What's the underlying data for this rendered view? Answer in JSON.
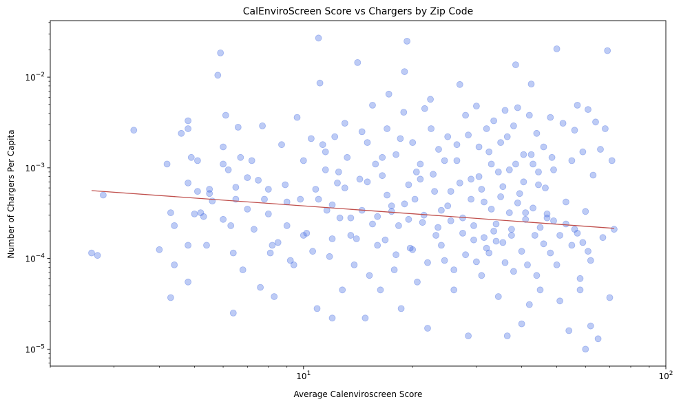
{
  "chart_data": {
    "type": "scatter",
    "title": "CalEnviroScreen Score vs Chargers by Zip Code",
    "xlabel": "Average Calenviroscreen Score",
    "ylabel": "Number of Chargers Per Capita",
    "x_scale": "log",
    "y_scale": "log",
    "xlim": [
      2,
      100
    ],
    "ylim": [
      6.5e-06,
      0.042
    ],
    "x_ticks": [
      {
        "value": 10,
        "label": "10",
        "exp": "1"
      },
      {
        "value": 100,
        "label": "10",
        "exp": "2"
      }
    ],
    "y_ticks": [
      {
        "value": 1e-05,
        "label": "10",
        "exp": "−5"
      },
      {
        "value": 0.0001,
        "label": "10",
        "exp": "−4"
      },
      {
        "value": 0.001,
        "label": "10",
        "exp": "−3"
      },
      {
        "value": 0.01,
        "label": "10",
        "exp": "−2"
      }
    ],
    "grid": false,
    "point_color": "#4169e1",
    "point_alpha": 0.35,
    "trend_line": {
      "color": "#c0504d",
      "points": [
        [
          2.6,
          0.00056
        ],
        [
          72,
          0.000215
        ]
      ]
    },
    "points": [
      [
        2.6,
        0.000115
      ],
      [
        2.7,
        0.000108
      ],
      [
        2.8,
        0.0005
      ],
      [
        3.4,
        0.0026
      ],
      [
        4.0,
        0.000125
      ],
      [
        4.2,
        0.0011
      ],
      [
        4.3,
        0.00032
      ],
      [
        4.4,
        0.00023
      ],
      [
        4.4,
        8.5e-05
      ],
      [
        4.3,
        3.7e-05
      ],
      [
        4.6,
        0.0024
      ],
      [
        4.8,
        0.0033
      ],
      [
        4.8,
        0.0027
      ],
      [
        4.8,
        0.00068
      ],
      [
        4.8,
        0.00014
      ],
      [
        4.8,
        5.5e-05
      ],
      [
        4.9,
        0.0013
      ],
      [
        5.0,
        0.00031
      ],
      [
        5.1,
        0.0012
      ],
      [
        5.1,
        0.00055
      ],
      [
        5.2,
        0.00032
      ],
      [
        5.3,
        0.00029
      ],
      [
        5.4,
        0.00014
      ],
      [
        5.5,
        0.00058
      ],
      [
        5.6,
        0.00043
      ],
      [
        5.8,
        0.0105
      ],
      [
        5.9,
        0.0185
      ],
      [
        6.0,
        0.0017
      ],
      [
        6.0,
        0.0011
      ],
      [
        6.0,
        0.00027
      ],
      [
        6.1,
        0.0038
      ],
      [
        6.2,
        0.00095
      ],
      [
        6.3,
        0.00023
      ],
      [
        6.4,
        0.000115
      ],
      [
        6.4,
        2.5e-05
      ],
      [
        6.5,
        0.00045
      ],
      [
        6.6,
        0.0028
      ],
      [
        6.7,
        0.0013
      ],
      [
        6.8,
        7.5e-05
      ],
      [
        7.0,
        0.00078
      ],
      [
        7.2,
        0.0012
      ],
      [
        7.3,
        0.00021
      ],
      [
        7.5,
        0.00073
      ],
      [
        7.6,
        4.8e-05
      ],
      [
        7.7,
        0.0029
      ],
      [
        7.8,
        0.00045
      ],
      [
        8.0,
        0.00031
      ],
      [
        8.1,
        0.000115
      ],
      [
        8.2,
        0.00014
      ],
      [
        8.3,
        3.8e-05
      ],
      [
        8.5,
        0.00015
      ],
      [
        8.7,
        0.0018
      ],
      [
        8.9,
        0.00065
      ],
      [
        9.0,
        0.00023
      ],
      [
        9.2,
        9.5e-05
      ],
      [
        9.4,
        8.5e-05
      ],
      [
        9.6,
        0.0036
      ],
      [
        9.8,
        0.00045
      ],
      [
        10.0,
        0.0012
      ],
      [
        10.2,
        0.00019
      ],
      [
        10.5,
        0.0021
      ],
      [
        10.6,
        0.00012
      ],
      [
        10.8,
        0.00058
      ],
      [
        10.9,
        2.8e-05
      ],
      [
        11.0,
        0.027
      ],
      [
        11.1,
        0.0086
      ],
      [
        11.3,
        0.0018
      ],
      [
        11.5,
        0.00095
      ],
      [
        11.6,
        0.00034
      ],
      [
        11.8,
        0.000105
      ],
      [
        12.0,
        2.2e-05
      ],
      [
        12.2,
        0.0022
      ],
      [
        12.4,
        0.00068
      ],
      [
        12.6,
        0.00028
      ],
      [
        12.8,
        4.5e-05
      ],
      [
        13.0,
        0.0031
      ],
      [
        13.2,
        0.0013
      ],
      [
        13.5,
        0.00018
      ],
      [
        13.8,
        8.5e-05
      ],
      [
        14.1,
        0.0145
      ],
      [
        14.3,
        0.00075
      ],
      [
        14.5,
        0.00034
      ],
      [
        14.8,
        2.2e-05
      ],
      [
        15.0,
        0.0019
      ],
      [
        15.2,
        6.5e-05
      ],
      [
        15.5,
        0.0049
      ],
      [
        15.8,
        0.0011
      ],
      [
        16.0,
        0.00029
      ],
      [
        16.3,
        4.5e-05
      ],
      [
        16.5,
        0.00082
      ],
      [
        16.8,
        0.00016
      ],
      [
        17.0,
        0.0027
      ],
      [
        17.2,
        0.0065
      ],
      [
        17.5,
        0.00038
      ],
      [
        17.8,
        7.5e-05
      ],
      [
        18.0,
        0.0014
      ],
      [
        18.3,
        0.00023
      ],
      [
        18.6,
        2.8e-05
      ],
      [
        18.9,
        0.0041
      ],
      [
        19.0,
        0.0115
      ],
      [
        19.3,
        0.0249
      ],
      [
        19.5,
        0.00065
      ],
      [
        19.7,
        0.00013
      ],
      [
        20.0,
        0.0019
      ],
      [
        20.3,
        0.00045
      ],
      [
        20.6,
        5.5e-05
      ],
      [
        21.0,
        0.0011
      ],
      [
        21.3,
        0.00025
      ],
      [
        21.6,
        0.0045
      ],
      [
        22.0,
        1.7e-05
      ],
      [
        22.4,
        0.0057
      ],
      [
        22.8,
        0.00085
      ],
      [
        23.2,
        0.00018
      ],
      [
        23.6,
        0.0016
      ],
      [
        24.0,
        0.00034
      ],
      [
        24.5,
        9.5e-05
      ],
      [
        25.0,
        0.0022
      ],
      [
        25.5,
        0.00055
      ],
      [
        26.0,
        4.5e-05
      ],
      [
        26.5,
        0.0012
      ],
      [
        27.0,
        0.0083
      ],
      [
        27.5,
        0.00028
      ],
      [
        28.0,
        0.0038
      ],
      [
        28.5,
        1.4e-05
      ],
      [
        29.0,
        0.00075
      ],
      [
        29.5,
        0.00016
      ],
      [
        30.0,
        0.0048
      ],
      [
        30.5,
        0.0017
      ],
      [
        31.0,
        6.5e-05
      ],
      [
        31.5,
        0.00042
      ],
      [
        32.0,
        0.0027
      ],
      [
        32.5,
        0.000115
      ],
      [
        33.0,
        0.0011
      ],
      [
        33.5,
        0.0033
      ],
      [
        34.0,
        0.00024
      ],
      [
        34.5,
        3.8e-05
      ],
      [
        35.0,
        0.0019
      ],
      [
        35.5,
        0.00062
      ],
      [
        36.0,
        0.0043
      ],
      [
        36.5,
        1.4e-05
      ],
      [
        37.0,
        0.00095
      ],
      [
        37.5,
        0.00021
      ],
      [
        38.0,
        0.0029
      ],
      [
        38.5,
        0.0137
      ],
      [
        39.0,
        0.0046
      ],
      [
        39.5,
        0.00052
      ],
      [
        40.0,
        1.9e-05
      ],
      [
        40.5,
        0.0014
      ],
      [
        41.0,
        0.00032
      ],
      [
        41.5,
        8.5e-05
      ],
      [
        42.0,
        0.0038
      ],
      [
        42.5,
        0.0084
      ],
      [
        43.0,
        0.0011
      ],
      [
        43.5,
        0.00018
      ],
      [
        44.0,
        0.0024
      ],
      [
        44.5,
        0.00065
      ],
      [
        45.0,
        4.5e-05
      ],
      [
        46.0,
        0.0017
      ],
      [
        47.0,
        0.00028
      ],
      [
        48.0,
        0.0036
      ],
      [
        49.0,
        0.00095
      ],
      [
        50.0,
        0.0205
      ],
      [
        51.0,
        3.4e-05
      ],
      [
        52.0,
        0.0031
      ],
      [
        53.0,
        0.00042
      ],
      [
        54.0,
        1.6e-05
      ],
      [
        55.0,
        0.0012
      ],
      [
        56.0,
        0.00021
      ],
      [
        57.0,
        0.0049
      ],
      [
        58.0,
        4.5e-05
      ],
      [
        59.0,
        0.0015
      ],
      [
        60.0,
        0.00033
      ],
      [
        61.0,
        0.0044
      ],
      [
        62.0,
        9.5e-05
      ],
      [
        63.0,
        0.00083
      ],
      [
        64.0,
        0.0032
      ],
      [
        65.0,
        1.3e-05
      ],
      [
        66.0,
        0.0016
      ],
      [
        67.0,
        0.00017
      ],
      [
        68.0,
        0.0027
      ],
      [
        69.0,
        0.0196
      ],
      [
        70.0,
        3.7e-05
      ],
      [
        71.0,
        0.0012
      ],
      [
        72.0,
        0.00021
      ],
      [
        60.0,
        1e-05
      ],
      [
        62.0,
        1.8e-05
      ],
      [
        56.0,
        0.0026
      ],
      [
        58.0,
        6e-05
      ],
      [
        50.0,
        8.5e-05
      ],
      [
        48.0,
        0.000115
      ],
      [
        46.0,
        0.000145
      ],
      [
        44.0,
        6.5e-05
      ],
      [
        42.0,
        3.1e-05
      ],
      [
        40.0,
        0.00012
      ],
      [
        38.0,
        7.2e-05
      ],
      [
        36.0,
        9e-05
      ],
      [
        34.0,
        0.000155
      ],
      [
        32.0,
        0.00013
      ],
      [
        30.0,
        9.2e-05
      ],
      [
        28.0,
        0.00011
      ],
      [
        26.0,
        7.5e-05
      ],
      [
        24.0,
        0.00014
      ],
      [
        22.0,
        9e-05
      ],
      [
        20.0,
        0.000125
      ],
      [
        18.0,
        0.00011
      ],
      [
        16.0,
        0.00014
      ],
      [
        14.0,
        0.000165
      ],
      [
        12.0,
        0.000165
      ],
      [
        10.0,
        0.00018
      ],
      [
        9.0,
        0.00042
      ],
      [
        8.0,
        0.00058
      ],
      [
        7.0,
        0.00035
      ],
      [
        6.5,
        0.00061
      ],
      [
        5.5,
        0.00052
      ],
      [
        13.0,
        0.0006
      ],
      [
        15.0,
        0.0007
      ],
      [
        17.0,
        0.0005
      ],
      [
        19.0,
        0.0004
      ],
      [
        21.0,
        0.00075
      ],
      [
        23.0,
        0.00055
      ],
      [
        25.0,
        0.00038
      ],
      [
        27.0,
        0.00068
      ],
      [
        29.0,
        0.00045
      ],
      [
        31.0,
        0.00058
      ],
      [
        33.0,
        0.00035
      ],
      [
        35.0,
        0.00048
      ],
      [
        37.0,
        0.00032
      ],
      [
        39.0,
        0.00041
      ],
      [
        41.0,
        0.00027
      ],
      [
        43.0,
        0.00036
      ],
      [
        45.0,
        0.00022
      ],
      [
        47.0,
        0.00031
      ],
      [
        49.0,
        0.00026
      ],
      [
        51.0,
        0.00018
      ],
      [
        53.0,
        0.00024
      ],
      [
        55.0,
        0.00014
      ],
      [
        57.0,
        0.00019
      ],
      [
        59.0,
        0.00015
      ],
      [
        61.0,
        0.00012
      ],
      [
        11.5,
        0.0015
      ],
      [
        12.5,
        0.0009
      ],
      [
        14.5,
        0.0025
      ],
      [
        16.5,
        0.0013
      ],
      [
        18.5,
        0.0021
      ],
      [
        20.5,
        0.0009
      ],
      [
        22.5,
        0.0027
      ],
      [
        24.5,
        0.0012
      ],
      [
        26.5,
        0.0018
      ],
      [
        28.5,
        0.0023
      ],
      [
        30.5,
        0.0008
      ],
      [
        32.5,
        0.0015
      ],
      [
        34.5,
        0.0009
      ],
      [
        36.5,
        0.0022
      ],
      [
        38.5,
        0.0011
      ],
      [
        40.5,
        0.0007
      ],
      [
        42.5,
        0.0014
      ],
      [
        44.5,
        0.0009
      ],
      [
        46.5,
        0.0006
      ],
      [
        48.5,
        0.0013
      ],
      [
        11.0,
        0.00045
      ],
      [
        12.0,
        0.00039
      ],
      [
        13.5,
        0.00028
      ],
      [
        15.5,
        0.00024
      ],
      [
        17.5,
        0.00033
      ],
      [
        19.5,
        0.00027
      ],
      [
        21.5,
        0.0003
      ],
      [
        23.5,
        0.00022
      ],
      [
        25.5,
        0.00026
      ],
      [
        27.5,
        0.00019
      ],
      [
        29.5,
        0.00023
      ],
      [
        31.5,
        0.00017
      ],
      [
        33.5,
        0.0002
      ],
      [
        35.5,
        0.00015
      ],
      [
        37.5,
        0.00018
      ]
    ]
  }
}
